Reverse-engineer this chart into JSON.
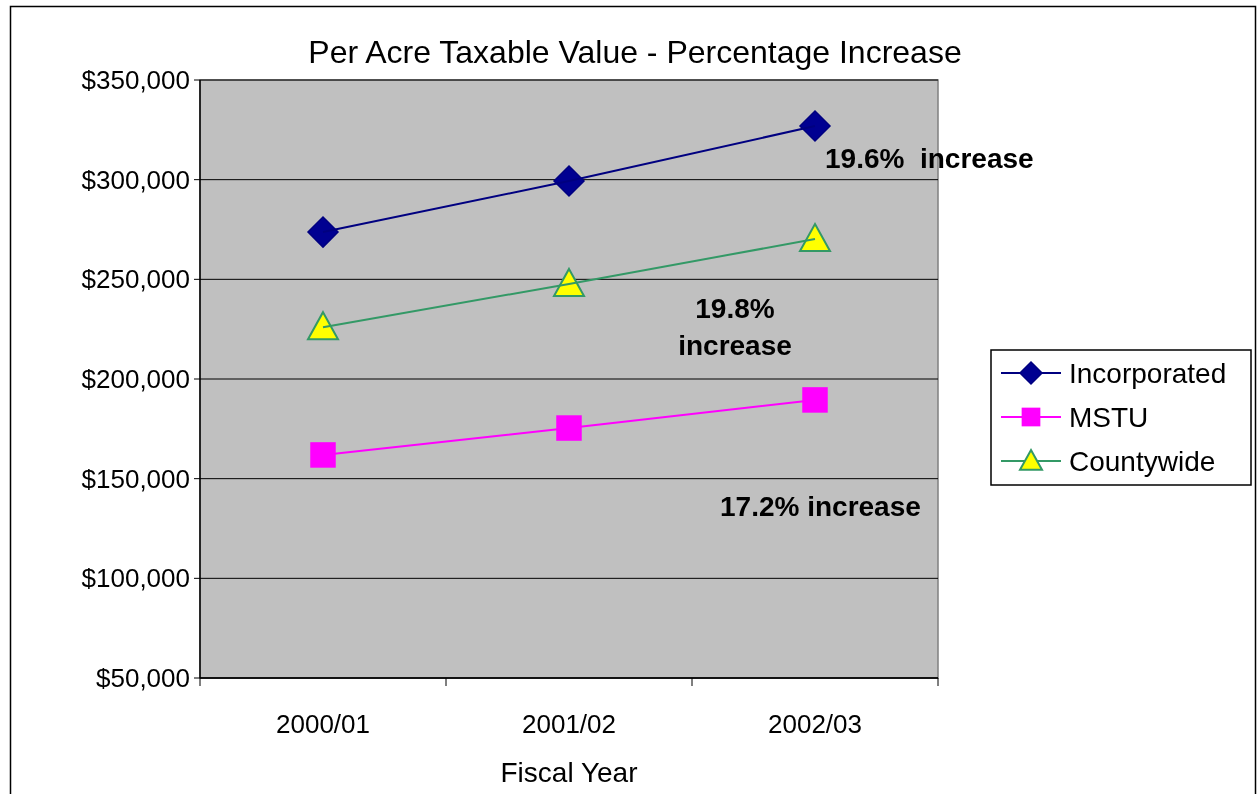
{
  "chart_data": {
    "type": "line",
    "title": "Per Acre Taxable Value - Percentage Increase",
    "xlabel": "Fiscal Year",
    "categories": [
      "2000/01",
      "2001/02",
      "2002/03"
    ],
    "series": [
      {
        "name": "Incorporated",
        "color": "#000080",
        "marker": "diamond",
        "values": [
          273700,
          299300,
          326900
        ]
      },
      {
        "name": "MSTU",
        "color": "#ff00ff",
        "marker": "square",
        "values": [
          161900,
          175400,
          189500
        ]
      },
      {
        "name": "Countywide",
        "color": "#339966",
        "marker": "triangle",
        "values": [
          226000,
          247700,
          270200
        ]
      }
    ],
    "ylim": [
      50000,
      350000
    ],
    "yticks": [
      {
        "value": 50000,
        "label": "$50,000"
      },
      {
        "value": 100000,
        "label": "$100,000"
      },
      {
        "value": 150000,
        "label": "$150,000"
      },
      {
        "value": 200000,
        "label": "$200,000"
      },
      {
        "value": 250000,
        "label": "$250,000"
      },
      {
        "value": 300000,
        "label": "$300,000"
      },
      {
        "value": 350000,
        "label": "$350,000"
      }
    ],
    "grid": "y",
    "legend": "right",
    "line_style": "solid",
    "annotations": [
      "19.6%  increase",
      "19.8% increase",
      "17.2% increase"
    ]
  }
}
